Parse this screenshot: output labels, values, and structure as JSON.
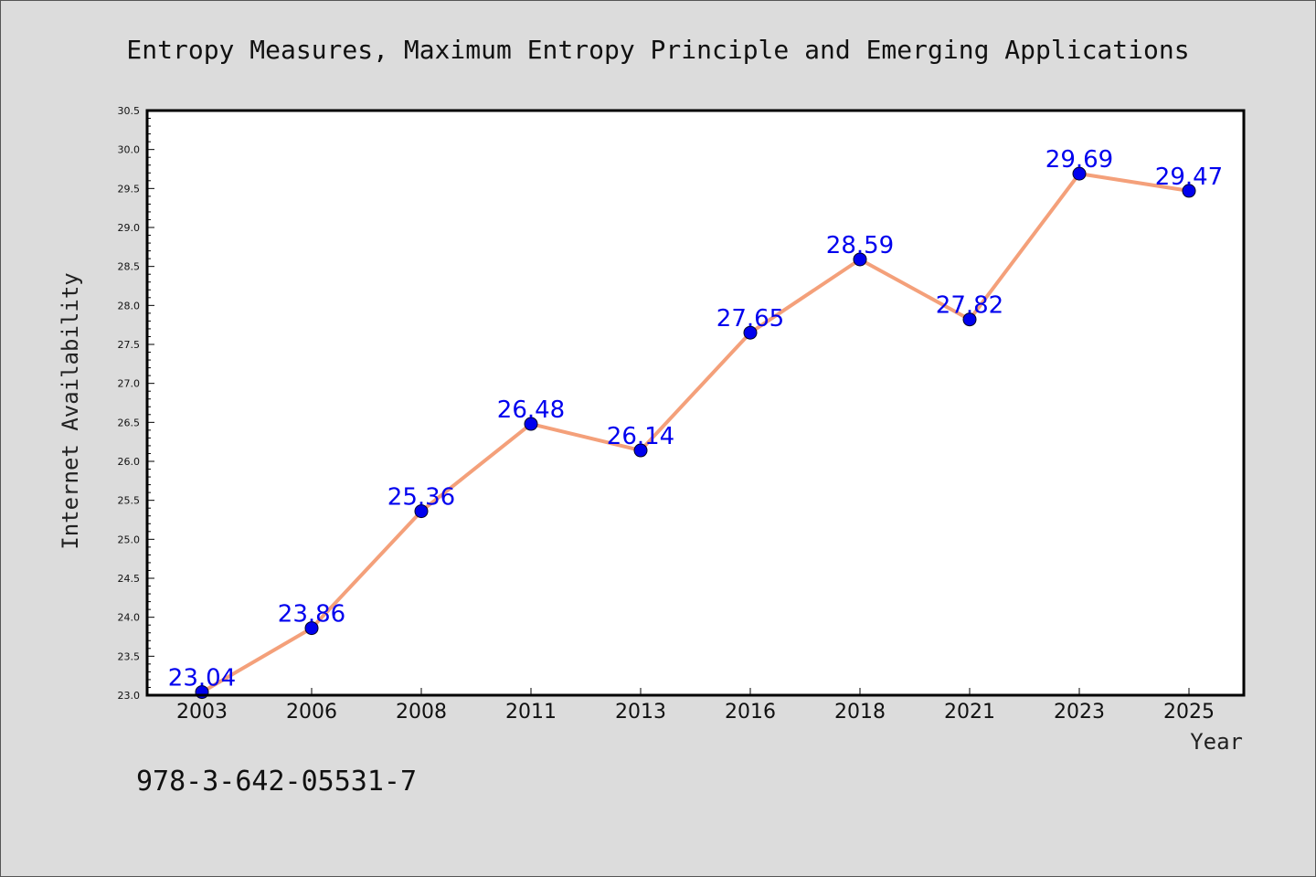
{
  "chart_data": {
    "type": "line",
    "title": "Entropy Measures, Maximum Entropy Principle and Emerging Applications",
    "xlabel": "Year",
    "ylabel": "Internet Availability",
    "categories": [
      "2003",
      "2006",
      "2008",
      "2011",
      "2013",
      "2016",
      "2018",
      "2021",
      "2023",
      "2025"
    ],
    "values": [
      23.04,
      23.86,
      25.36,
      26.48,
      26.14,
      27.65,
      28.59,
      27.82,
      29.69,
      29.47
    ],
    "value_labels": [
      "23.04",
      "23.86",
      "25.36",
      "26.48",
      "26.14",
      "27.65",
      "28.59",
      "27.82",
      "29.69",
      "29.47"
    ],
    "ylim": [
      23.0,
      30.5
    ],
    "yticks": [
      "23.0",
      "23.5",
      "24.0",
      "24.5",
      "25.0",
      "25.5",
      "26.0",
      "26.5",
      "27.0",
      "27.5",
      "28.0",
      "28.5",
      "29.0",
      "29.5",
      "30.0",
      "30.5"
    ],
    "line_color": "#f4a07a",
    "marker_color": "#0000ee",
    "label_color": "#0000ee",
    "grid": false,
    "legend": "none"
  },
  "footer_text": "978-3-642-05531-7"
}
